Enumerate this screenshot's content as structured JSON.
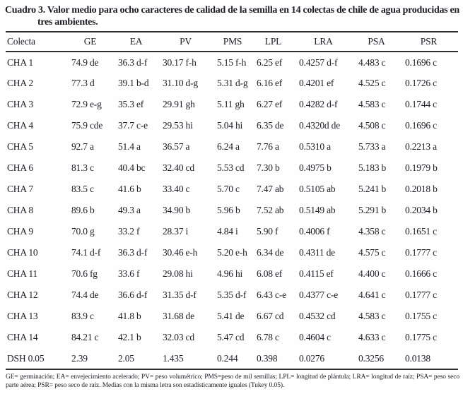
{
  "caption": "Cuadro 3. Valor medio para ocho caracteres de calidad de la semilla en 14 colectas de chile de agua producidas en tres ambientes.",
  "table": {
    "columns": [
      "Colecta",
      "GE",
      "EA",
      "PV",
      "PMS",
      "LPL",
      "LRA",
      "PSA",
      "PSR"
    ],
    "rows": [
      [
        "CHA 1",
        "74.9 de",
        "36.3 d-f",
        "30.17 f-h",
        "5.15 f-h",
        "6.25 ef",
        "0.4257 d-f",
        "4.483 c",
        "0.1696 c"
      ],
      [
        "CHA 2",
        "77.3 d",
        "39.1 b-d",
        "31.10 d-g",
        "5.31 d-g",
        "6.16 ef",
        "0.4201 ef",
        "4.525 c",
        "0.1726 c"
      ],
      [
        "CHA 3",
        "72.9 e-g",
        "35.3 ef",
        "29.91 gh",
        "5.11 gh",
        "6.27 ef",
        "0.4282 d-f",
        "4.583 c",
        "0.1744 c"
      ],
      [
        "CHA 4",
        "75.9 cde",
        "37.7 c-e",
        "29.53 hi",
        "5.04 hi",
        "6.35 de",
        "0.4320d de",
        "4.508 c",
        "0.1696 c"
      ],
      [
        "CHA 5",
        "92.7 a",
        "51.4 a",
        "36.57 a",
        "6.24 a",
        "7.76 a",
        "0.5310 a",
        "5.733 a",
        "0.2213 a"
      ],
      [
        "CHA 6",
        "81.3 c",
        "40.4 bc",
        "32.40 cd",
        "5.53 cd",
        "7.30 b",
        "0.4975 b",
        "5.183 b",
        "0.1979 b"
      ],
      [
        "CHA 7",
        "83.5 c",
        "41.6 b",
        "33.40 c",
        "5.70 c",
        "7.47 ab",
        "0.5105 ab",
        "5.241 b",
        "0.2018 b"
      ],
      [
        "CHA 8",
        "89.6 b",
        "49.3 a",
        "34.90 b",
        "5.96 b",
        "7.52 ab",
        "0.5149 ab",
        "5.291 b",
        "0.2034 b"
      ],
      [
        "CHA 9",
        "70.0 g",
        "33.2 f",
        "28.37 i",
        "4.84 i",
        "5.90 f",
        "0.4006 f",
        "4.358 c",
        "0.1651 c"
      ],
      [
        "CHA 10",
        "74.1 d-f",
        "36.3 d-f",
        "30.46 e-h",
        "5.20 e-h",
        "6.34 de",
        "0.4311 de",
        "4.575 c",
        "0.1777 c"
      ],
      [
        "CHA 11",
        "70.6 fg",
        "33.6 f",
        "29.08 hi",
        "4.96 hi",
        "6.08 ef",
        "0.4115 ef",
        "4.400 c",
        "0.1666 c"
      ],
      [
        "CHA 12",
        "74.4 de",
        "36.6 d-f",
        "31.35 d-f",
        "5.35 d-f",
        "6.43 c-e",
        "0.4377 c-e",
        "4.641 c",
        "0.1777 c"
      ],
      [
        "CHA 13",
        "83.9 c",
        "41.8 b",
        "31.68 de",
        "5.41 de",
        "6.67 cd",
        "0.4532 cd",
        "4.583 c",
        "0.1755 c"
      ],
      [
        "CHA 14",
        "84.21 c",
        "42.1 b",
        "32.03 cd",
        "5.47 cd",
        "6.78 c",
        "0.4604 c",
        "4.633 c",
        "0.1775 c"
      ],
      [
        "DSH 0.05",
        "2.39",
        "2.05",
        "1.435",
        "0.244",
        "0.398",
        "0.0276",
        "0.3256",
        "0.0138"
      ]
    ]
  },
  "footnote": "GE= germinación; EA= envejecimiento acelerado; PV= peso volumétrico; PMS=peso de mil semillas; LPL= longitud de plántula; LRA= longitud de raíz; PSA= peso seco parte aérea; PSR= peso seco de raíz. Medias con la misma letra son estadísticamente iguales (Tukey 0.05)."
}
